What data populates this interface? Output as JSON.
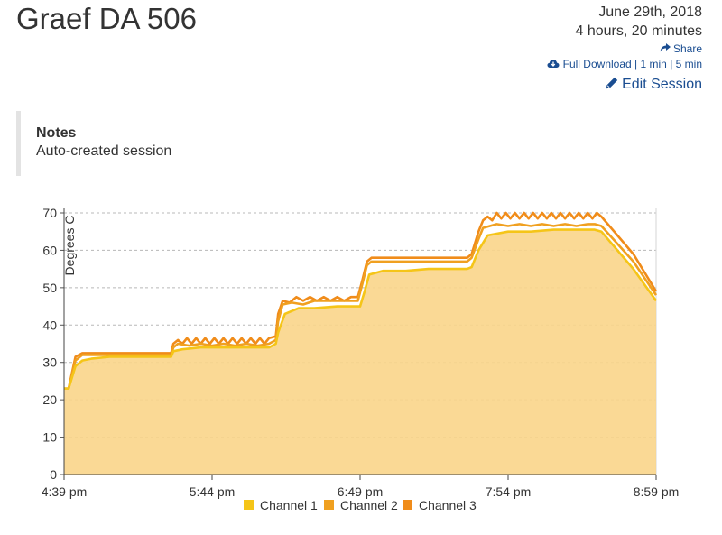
{
  "header": {
    "title": "Graef DA 506",
    "date": "June 29th, 2018",
    "duration": "4 hours, 20 minutes",
    "share_label": "Share",
    "download_label": "Full Download",
    "interval_1min": "1 min",
    "interval_5min": "5 min",
    "separator": "|",
    "edit_label": "Edit Session",
    "icons": [
      "share-icon",
      "cloud-download-icon",
      "pencil-icon"
    ],
    "link_color": "#1a4d91"
  },
  "notes": {
    "heading": "Notes",
    "body": "Auto-created session"
  },
  "chart_data": {
    "type": "area",
    "ylabel": "Degrees C",
    "xlabel": "",
    "ylim": [
      0,
      70
    ],
    "yticks": [
      0,
      10,
      20,
      30,
      40,
      50,
      60,
      70
    ],
    "xlim": [
      "4:39 pm",
      "8:59 pm"
    ],
    "xlim_minutes": [
      0,
      260
    ],
    "xticks": [
      {
        "label": "4:39 pm",
        "t": 0
      },
      {
        "label": "5:44 pm",
        "t": 65
      },
      {
        "label": "6:49 pm",
        "t": 130
      },
      {
        "label": "7:54 pm",
        "t": 195
      },
      {
        "label": "8:59 pm",
        "t": 260
      }
    ],
    "grid": true,
    "legend_position": "bottom",
    "series": [
      {
        "name": "Channel 1",
        "color": "#f5c518",
        "fill": "#f9d58a",
        "t": [
          0,
          2,
          5,
          8,
          12,
          20,
          30,
          40,
          47,
          48,
          52,
          60,
          70,
          80,
          90,
          93,
          94,
          97,
          103,
          110,
          120,
          129,
          130,
          132,
          134,
          140,
          150,
          160,
          170,
          177,
          179,
          182,
          186,
          195,
          205,
          215,
          225,
          233,
          236,
          250,
          260
        ],
        "values": [
          23,
          23,
          29,
          30.5,
          31,
          31.5,
          31.5,
          31.5,
          31.5,
          33,
          33.5,
          34,
          34,
          34,
          34,
          35,
          38,
          43,
          44.5,
          44.5,
          45,
          45,
          45,
          49,
          53.5,
          54.5,
          54.5,
          55,
          55,
          55,
          55.5,
          60,
          64,
          65,
          65,
          65.5,
          65.5,
          65.5,
          65,
          55,
          46.5
        ]
      },
      {
        "name": "Channel 2",
        "color": "#f0a020",
        "t": [
          0,
          2,
          5,
          8,
          12,
          20,
          30,
          40,
          47,
          48,
          50,
          55,
          60,
          65,
          70,
          75,
          80,
          85,
          90,
          93,
          94,
          96,
          100,
          105,
          110,
          115,
          120,
          125,
          129,
          131,
          133,
          135,
          140,
          150,
          160,
          170,
          177,
          179,
          182,
          184,
          190,
          195,
          200,
          205,
          210,
          215,
          220,
          225,
          230,
          233,
          236,
          250,
          260
        ],
        "values": [
          23,
          23,
          30.5,
          32,
          32,
          32,
          32,
          32,
          32,
          34,
          35,
          34.5,
          35,
          34.5,
          35,
          34.5,
          35,
          34.5,
          35,
          36,
          41,
          45.5,
          46,
          45.5,
          46.5,
          46.5,
          46.5,
          46.5,
          46.5,
          51,
          56,
          57,
          57,
          57,
          57,
          57,
          57,
          58,
          63,
          66,
          67,
          66.5,
          67,
          66.5,
          67,
          66.5,
          67,
          66.5,
          67,
          67,
          66.5,
          57,
          48
        ]
      },
      {
        "name": "Channel 3",
        "color": "#f08c1a",
        "t": [
          0,
          2,
          5,
          8,
          12,
          20,
          30,
          40,
          47,
          48,
          50,
          52,
          54,
          56,
          58,
          60,
          62,
          64,
          66,
          68,
          70,
          72,
          74,
          76,
          78,
          80,
          82,
          84,
          86,
          88,
          90,
          93,
          94,
          96,
          99,
          102,
          105,
          108,
          111,
          114,
          117,
          120,
          123,
          126,
          129,
          131,
          133,
          135,
          140,
          150,
          160,
          170,
          177,
          179,
          182,
          184,
          186,
          188,
          190,
          192,
          194,
          196,
          198,
          200,
          202,
          204,
          206,
          208,
          210,
          212,
          214,
          216,
          218,
          220,
          222,
          224,
          226,
          228,
          230,
          232,
          234,
          236,
          250,
          260
        ],
        "values": [
          23,
          23,
          31.5,
          32.5,
          32.5,
          32.5,
          32.5,
          32.5,
          32.5,
          35,
          36,
          35,
          36.5,
          35,
          36.5,
          35,
          36.5,
          35,
          36.5,
          35,
          36.5,
          35,
          36.5,
          35,
          36.5,
          35,
          36.5,
          35,
          36.5,
          35,
          36.5,
          37,
          43,
          46.5,
          46,
          47.5,
          46.5,
          47.5,
          46.5,
          47.5,
          46.5,
          47.5,
          46.5,
          47.5,
          47.5,
          52,
          57,
          58,
          58,
          58,
          58,
          58,
          58,
          59,
          65,
          68,
          69,
          68,
          70,
          68.5,
          70,
          68.5,
          70,
          68.5,
          70,
          68.5,
          70,
          68.5,
          70,
          68.5,
          70,
          68.5,
          70,
          68.5,
          70,
          68.5,
          70,
          68.5,
          70,
          68.5,
          70,
          69,
          59,
          49
        ]
      }
    ]
  }
}
